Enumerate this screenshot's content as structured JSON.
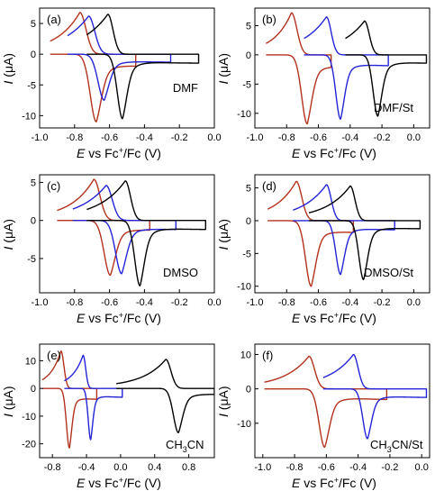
{
  "figure": {
    "colors": {
      "black": "#000000",
      "blue": "#2424d6",
      "red": "#b2321e"
    }
  },
  "chart_data": [
    {
      "type": "line",
      "panel_label": "(a)",
      "annotation": "DMF",
      "xlabel_parts": [
        "E",
        " vs Fc",
        "+",
        "/Fc (V)"
      ],
      "ylabel_parts": [
        "I",
        " (",
        "μ",
        "A)"
      ],
      "xlim": [
        -1.0,
        0.0
      ],
      "ylim": [
        -12,
        7.5
      ],
      "xticks": [
        -1.0,
        -0.8,
        -0.6,
        -0.4,
        -0.2,
        0.0
      ],
      "xtick_labels": [
        "-1.0",
        "-0.8",
        "-0.6",
        "-0.4",
        "-0.2",
        "0.0"
      ],
      "yticks": [
        -10,
        -5,
        0,
        5
      ],
      "ytick_labels": [
        "-10",
        "-5",
        "0",
        "5"
      ],
      "series": [
        {
          "color": "red",
          "params": {
            "E0": -0.72,
            "xmin": -0.94,
            "xmax": -0.45,
            "Ic": 6.8,
            "Ia": -11.0,
            "w": 0.035,
            "ox": 0.045,
            "rx": 0.05,
            "tc": 0.12,
            "ta": 0.12,
            "decA": 0.55,
            "decC": 0.55
          }
        },
        {
          "color": "blue",
          "params": {
            "E0": -0.68,
            "xmin": -0.84,
            "xmax": -0.25,
            "Ic": 6.2,
            "Ia": -7.5,
            "w": 0.035,
            "ox": 0.05,
            "rx": 0.04,
            "tc": 0.14,
            "ta": 0.1,
            "decA": 0.5,
            "decC": 0.55
          }
        },
        {
          "color": "black",
          "params": {
            "E0": -0.57,
            "xmin": -0.73,
            "xmax": -0.09,
            "Ic": 6.5,
            "Ia": -10.5,
            "w": 0.03,
            "ox": 0.045,
            "rx": 0.04,
            "tc": 0.14,
            "ta": 0.1,
            "decA": 0.4,
            "decC": 0.6
          }
        }
      ]
    },
    {
      "type": "line",
      "panel_label": "(b)",
      "annotation": "DMF/St",
      "xlabel_parts": [
        "E",
        " vs Fc",
        "+",
        "/Fc (V)"
      ],
      "ylabel_parts": [
        "I",
        " (",
        "μ",
        "A)"
      ],
      "xlim": [
        -1.0,
        0.1
      ],
      "ylim": [
        -12.5,
        8.0
      ],
      "xticks": [
        -1.0,
        -0.8,
        -0.6,
        -0.4,
        -0.2,
        0.0
      ],
      "xtick_labels": [
        "-1.0",
        "-0.8",
        "-0.6",
        "-0.4",
        "-0.2",
        "0.0"
      ],
      "yticks": [
        -10,
        -5,
        0,
        5
      ],
      "ytick_labels": [
        "-10",
        "-5",
        "0",
        "5"
      ],
      "series": [
        {
          "color": "red",
          "params": {
            "E0": -0.72,
            "xmin": -0.93,
            "xmax": -0.52,
            "Ic": 7.2,
            "Ia": -11.8,
            "w": 0.035,
            "ox": 0.05,
            "rx": 0.05,
            "tc": 0.1,
            "ta": 0.12,
            "decA": 0.55,
            "decC": 0.55
          }
        },
        {
          "color": "blue",
          "params": {
            "E0": -0.51,
            "xmin": -0.69,
            "xmax": -0.16,
            "Ic": 6.5,
            "Ia": -11.0,
            "w": 0.03,
            "ox": 0.05,
            "rx": 0.04,
            "tc": 0.14,
            "ta": 0.1,
            "decA": 0.5,
            "decC": 0.6
          }
        },
        {
          "color": "black",
          "params": {
            "E0": -0.27,
            "xmin": -0.43,
            "xmax": 0.08,
            "Ic": 5.8,
            "Ia": -10.5,
            "w": 0.03,
            "ox": 0.045,
            "rx": 0.04,
            "tc": 0.14,
            "ta": 0.1,
            "decA": 0.4,
            "decC": 0.6
          }
        }
      ]
    },
    {
      "type": "line",
      "panel_label": "(c)",
      "annotation": "DMSO",
      "xlabel_parts": [
        "E",
        " vs Fc",
        "+",
        "/Fc (V)"
      ],
      "ylabel_parts": [
        "I",
        " (",
        "μ",
        "A)"
      ],
      "xlim": [
        -1.0,
        0.0
      ],
      "ylim": [
        -9.5,
        6.0
      ],
      "xticks": [
        -1.0,
        -0.8,
        -0.6,
        -0.4,
        -0.2,
        0.0
      ],
      "xtick_labels": [
        "-1.0",
        "-0.8",
        "-0.6",
        "-0.4",
        "-0.2",
        "0.0"
      ],
      "yticks": [
        -5,
        0,
        5
      ],
      "ytick_labels": [
        "-5",
        "0",
        "5"
      ],
      "series": [
        {
          "color": "red",
          "params": {
            "E0": -0.64,
            "xmin": -0.9,
            "xmax": -0.37,
            "Ic": 5.4,
            "Ia": -7.2,
            "w": 0.035,
            "ox": 0.045,
            "rx": 0.05,
            "tc": 0.12,
            "ta": 0.12,
            "decA": 0.55,
            "decC": 0.55
          }
        },
        {
          "color": "blue",
          "params": {
            "E0": -0.58,
            "xmin": -0.81,
            "xmax": -0.22,
            "Ic": 4.6,
            "Ia": -7.0,
            "w": 0.035,
            "ox": 0.05,
            "rx": 0.04,
            "tc": 0.14,
            "ta": 0.1,
            "decA": 0.5,
            "decC": 0.55
          }
        },
        {
          "color": "black",
          "params": {
            "E0": -0.47,
            "xmin": -0.73,
            "xmax": -0.05,
            "Ic": 5.2,
            "Ia": -8.6,
            "w": 0.03,
            "ox": 0.045,
            "rx": 0.04,
            "tc": 0.14,
            "ta": 0.1,
            "decA": 0.4,
            "decC": 0.6
          }
        }
      ]
    },
    {
      "type": "line",
      "panel_label": "(d)",
      "annotation": "DMSO/St",
      "xlabel_parts": [
        "E",
        " vs Fc",
        "+",
        "/Fc (V)"
      ],
      "ylabel_parts": [
        "I",
        " (",
        "μ",
        "A)"
      ],
      "xlim": [
        -1.0,
        0.1
      ],
      "ylim": [
        -11.0,
        7.0
      ],
      "xticks": [
        -1.0,
        -0.8,
        -0.6,
        -0.4,
        -0.2,
        0.0
      ],
      "xtick_labels": [
        "-1.0",
        "-0.8",
        "-0.6",
        "-0.4",
        "-0.2",
        "0.0"
      ],
      "yticks": [
        -10,
        -5,
        0,
        5
      ],
      "ytick_labels": [
        "-10",
        "-5",
        "0",
        "5"
      ],
      "series": [
        {
          "color": "red",
          "params": {
            "E0": -0.69,
            "xmin": -0.92,
            "xmax": -0.38,
            "Ic": 6.0,
            "Ia": -10.0,
            "w": 0.035,
            "ox": 0.045,
            "rx": 0.05,
            "tc": 0.12,
            "ta": 0.12,
            "decA": 0.55,
            "decC": 0.55
          }
        },
        {
          "color": "blue",
          "params": {
            "E0": -0.51,
            "xmin": -0.76,
            "xmax": -0.12,
            "Ic": 5.5,
            "Ia": -8.2,
            "w": 0.03,
            "ox": 0.05,
            "rx": 0.04,
            "tc": 0.14,
            "ta": 0.1,
            "decA": 0.5,
            "decC": 0.55
          }
        },
        {
          "color": "black",
          "params": {
            "E0": -0.36,
            "xmin": -0.66,
            "xmax": 0.04,
            "Ic": 5.3,
            "Ia": -9.0,
            "w": 0.03,
            "ox": 0.045,
            "rx": 0.04,
            "tc": 0.14,
            "ta": 0.1,
            "decA": 0.4,
            "decC": 0.6
          }
        }
      ]
    },
    {
      "type": "line",
      "panel_label": "(e)",
      "annotation_parts": [
        "CH",
        "3",
        "CN"
      ],
      "xlabel_parts": [
        "E",
        " vs Fc",
        "+",
        "/Fc (V)"
      ],
      "ylabel_parts": [
        "I",
        " (",
        "μ",
        "A)"
      ],
      "xlim": [
        -0.95,
        1.1
      ],
      "ylim": [
        -25,
        16
      ],
      "xticks": [
        -0.8,
        -0.4,
        0.0,
        0.4,
        0.8
      ],
      "xtick_labels": [
        "-0.8",
        "-0.4",
        "0.0",
        "0.4",
        "0.8"
      ],
      "yticks": [
        -20,
        -10,
        0,
        10
      ],
      "ytick_labels": [
        "-20",
        "-10",
        "0",
        "10"
      ],
      "series": [
        {
          "color": "red",
          "params": {
            "E0": -0.65,
            "xmin": -0.92,
            "xmax": -0.28,
            "Ic": 13.5,
            "Ia": -21.5,
            "w": 0.035,
            "ox": 0.05,
            "rx": 0.05,
            "tc": 0.12,
            "ta": 0.12,
            "decA": 0.55,
            "decC": 0.55
          }
        },
        {
          "color": "blue",
          "params": {
            "E0": -0.4,
            "xmin": -0.66,
            "xmax": 0.02,
            "Ic": 12.0,
            "Ia": -18.5,
            "w": 0.03,
            "ox": 0.05,
            "rx": 0.04,
            "tc": 0.12,
            "ta": 0.1,
            "decA": 0.5,
            "decC": 0.55
          }
        },
        {
          "color": "black",
          "params": {
            "E0": 0.6,
            "xmin": -0.05,
            "xmax": 1.1,
            "Ic": 10.5,
            "Ia": -16.0,
            "w": 0.06,
            "ox": 0.08,
            "rx": 0.07,
            "tc": 0.25,
            "ta": 0.18,
            "decA": 0.4,
            "decC": 0.5
          }
        }
      ]
    },
    {
      "type": "line",
      "panel_label": "(f)",
      "annotation_parts": [
        "CH",
        "3",
        "CN/St"
      ],
      "xlabel_parts": [
        "E",
        " vs Fc",
        "+",
        "/Fc (V)"
      ],
      "ylabel_parts": [
        "I",
        " (",
        "μ",
        "A)"
      ],
      "xlim": [
        -1.05,
        0.05
      ],
      "ylim": [
        -20,
        13
      ],
      "xticks": [
        -1.0,
        -0.8,
        -0.6,
        -0.4,
        -0.2,
        0.0
      ],
      "xtick_labels": [
        "-1.0",
        "-0.8",
        "-0.6",
        "-0.4",
        "-0.2",
        "0.0"
      ],
      "yticks": [
        -10,
        0,
        10
      ],
      "ytick_labels": [
        "-10",
        "0",
        "10"
      ],
      "series": [
        {
          "color": "red",
          "params": {
            "E0": -0.66,
            "xmin": -0.99,
            "xmax": -0.22,
            "Ic": 9.5,
            "Ia": -17.0,
            "w": 0.035,
            "ox": 0.05,
            "rx": 0.05,
            "tc": 0.14,
            "ta": 0.14,
            "decA": 0.55,
            "decC": 0.55
          }
        },
        {
          "color": "blue",
          "params": {
            "E0": -0.39,
            "xmin": -0.62,
            "xmax": 0.03,
            "Ic": 10.0,
            "Ia": -14.5,
            "w": 0.03,
            "ox": 0.05,
            "rx": 0.04,
            "tc": 0.14,
            "ta": 0.1,
            "decA": 0.5,
            "decC": 0.55
          }
        }
      ]
    }
  ]
}
